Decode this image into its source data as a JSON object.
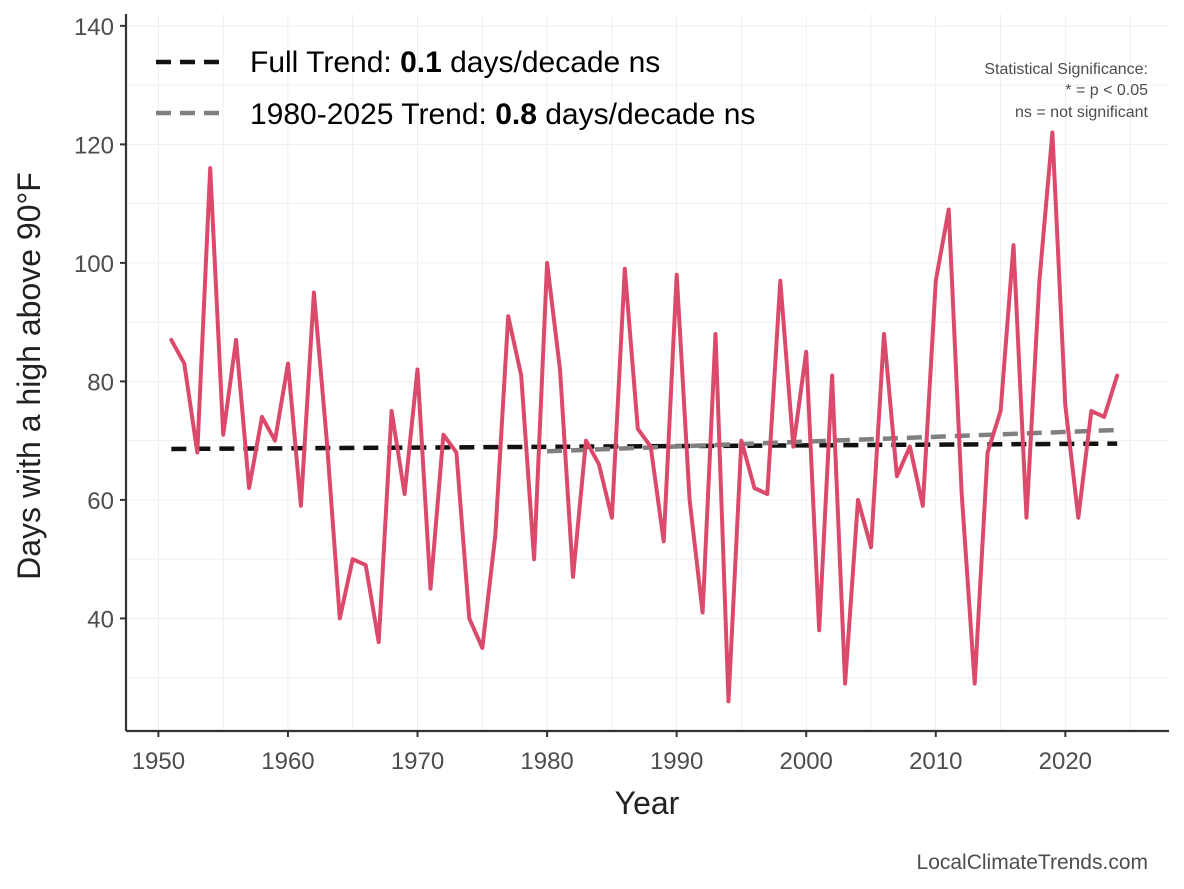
{
  "chart_data": {
    "type": "line",
    "xlabel": "Year",
    "ylabel": "Days with a high above 90°F",
    "xlim": [
      1947.5,
      2028
    ],
    "ylim": [
      21,
      142
    ],
    "x_ticks": [
      1950,
      1960,
      1970,
      1980,
      1990,
      2000,
      2010,
      2020
    ],
    "y_ticks": [
      40,
      60,
      80,
      100,
      120,
      140
    ],
    "grid": true,
    "series": [
      {
        "name": "Days above 90°F",
        "color": "#dc4a6b",
        "x": [
          1951,
          1952,
          1953,
          1954,
          1955,
          1956,
          1957,
          1958,
          1959,
          1960,
          1961,
          1962,
          1963,
          1964,
          1965,
          1966,
          1967,
          1968,
          1969,
          1970,
          1971,
          1972,
          1973,
          1974,
          1975,
          1976,
          1977,
          1978,
          1979,
          1980,
          1981,
          1982,
          1983,
          1984,
          1985,
          1986,
          1987,
          1988,
          1989,
          1990,
          1991,
          1992,
          1993,
          1994,
          1995,
          1996,
          1997,
          1998,
          1999,
          2000,
          2001,
          2002,
          2003,
          2004,
          2005,
          2006,
          2007,
          2008,
          2009,
          2010,
          2011,
          2012,
          2013,
          2014,
          2015,
          2016,
          2017,
          2018,
          2019,
          2020,
          2021,
          2022,
          2023,
          2024
        ],
        "values": [
          87,
          83,
          68,
          116,
          71,
          87,
          62,
          74,
          70,
          83,
          59,
          95,
          70,
          40,
          50,
          49,
          36,
          75,
          61,
          82,
          45,
          71,
          68,
          40,
          35,
          54,
          91,
          81,
          50,
          100,
          82,
          47,
          70,
          66,
          57,
          99,
          72,
          69,
          53,
          98,
          60,
          41,
          88,
          26,
          70,
          62,
          61,
          97,
          69,
          85,
          38,
          81,
          29,
          60,
          52,
          88,
          64,
          69,
          59,
          97,
          109,
          61,
          29,
          68,
          75,
          103,
          57,
          97,
          122,
          76,
          57,
          75,
          74,
          81
        ]
      },
      {
        "name": "Full Trend",
        "type": "trend",
        "color": "#111111",
        "x": [
          1951,
          2024
        ],
        "values": [
          68.6,
          69.5
        ]
      },
      {
        "name": "1980-2025 Trend",
        "type": "trend",
        "color": "#808080",
        "x": [
          1980,
          2024
        ],
        "values": [
          68.2,
          71.8
        ]
      }
    ],
    "legend": {
      "placement": "top-left",
      "entries": [
        {
          "prefix": "Full Trend: ",
          "value": "0.1",
          "suffix": " days/decade ns",
          "color": "#111111"
        },
        {
          "prefix": "1980-2025 Trend: ",
          "value": "0.8",
          "suffix": " days/decade ns",
          "color": "#808080"
        }
      ]
    },
    "annotation": {
      "placement": "top-right",
      "lines": [
        "Statistical Significance:",
        "* = p < 0.05",
        "ns = not significant"
      ]
    },
    "caption": "LocalClimateTrends.com"
  }
}
